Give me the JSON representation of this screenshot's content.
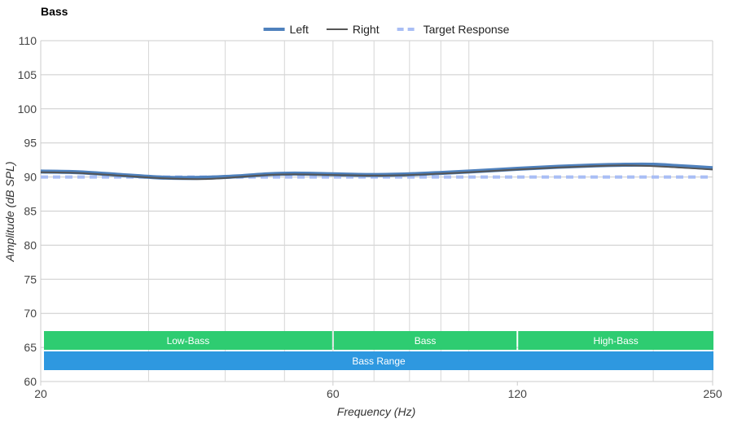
{
  "chart_data": {
    "type": "line",
    "title": "Bass",
    "xlabel": "Frequency (Hz)",
    "ylabel": "Amplitude (dB SPL)",
    "xscale": "log",
    "xlim": [
      20,
      250
    ],
    "ylim": [
      60,
      110
    ],
    "x_ticks": [
      20,
      60,
      120,
      250
    ],
    "y_ticks": [
      60,
      65,
      70,
      75,
      80,
      85,
      90,
      95,
      100,
      105,
      110
    ],
    "grid": true,
    "legend_position": "top-center",
    "series": [
      {
        "name": "Left",
        "color": "#4f81bd",
        "style": "thick",
        "x": [
          20,
          23,
          27,
          32,
          37,
          42,
          47,
          52,
          60,
          70,
          80,
          90,
          100,
          120,
          140,
          160,
          180,
          200,
          220,
          250
        ],
        "y": [
          90.8,
          90.7,
          90.3,
          89.9,
          89.9,
          90.1,
          90.4,
          90.5,
          90.4,
          90.3,
          90.4,
          90.6,
          90.8,
          91.2,
          91.5,
          91.7,
          91.8,
          91.8,
          91.6,
          91.3
        ]
      },
      {
        "name": "Right",
        "color": "#555555",
        "style": "solid",
        "x": [
          20,
          23,
          27,
          32,
          37,
          42,
          47,
          52,
          60,
          70,
          80,
          90,
          100,
          120,
          140,
          160,
          180,
          200,
          220,
          250
        ],
        "y": [
          90.7,
          90.6,
          90.2,
          89.8,
          89.7,
          90.0,
          90.3,
          90.4,
          90.3,
          90.2,
          90.3,
          90.5,
          90.7,
          91.1,
          91.4,
          91.6,
          91.7,
          91.6,
          91.4,
          91.1
        ]
      },
      {
        "name": "Target Response",
        "color": "#a9bef5",
        "style": "dashed",
        "x": [
          20,
          250
        ],
        "y": [
          90,
          90
        ]
      }
    ],
    "ranges": [
      {
        "label": "Low-Bass",
        "from": 20,
        "to": 60,
        "row": 1,
        "color": "#2ecc71"
      },
      {
        "label": "Bass",
        "from": 60,
        "to": 120,
        "row": 1,
        "color": "#2ecc71"
      },
      {
        "label": "High-Bass",
        "from": 120,
        "to": 250,
        "row": 1,
        "color": "#2ecc71"
      },
      {
        "label": "Bass Range",
        "from": 20,
        "to": 250,
        "row": 2,
        "color": "#2e98e0"
      }
    ]
  }
}
